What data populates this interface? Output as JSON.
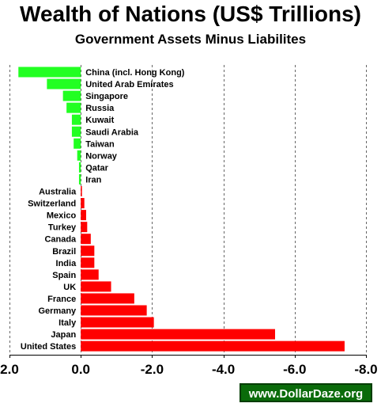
{
  "title": "Wealth of Nations (US$ Trillions)",
  "subtitle": "Government Assets Minus Liabilites",
  "watermark": "www.DollarDaze.org",
  "colors": {
    "positive": "#22ff22",
    "negative": "#ff0000",
    "grid": "#666666"
  },
  "chart_data": {
    "type": "bar",
    "orientation": "horizontal",
    "axis": "reversed",
    "xlim": [
      2.0,
      -8.0
    ],
    "ticks": [
      2.0,
      0.0,
      -2.0,
      -4.0,
      -6.0,
      -8.0
    ],
    "tick_labels": [
      "2.0",
      "0.0",
      "-2.0",
      "-4.0",
      "-6.0",
      "-8.0"
    ],
    "grid": true,
    "categories": [
      "China (incl. Hong Kong)",
      "United Arab Emirates",
      "Singapore",
      "Russia",
      "Kuwait",
      "Saudi Arabia",
      "Taiwan",
      "Norway",
      "Qatar",
      "Iran",
      "Australia",
      "Switzerland",
      "Mexico",
      "Turkey",
      "Canada",
      "Brazil",
      "India",
      "Spain",
      "UK",
      "France",
      "Germany",
      "Italy",
      "Japan",
      "United States"
    ],
    "values": [
      1.75,
      0.95,
      0.5,
      0.4,
      0.25,
      0.25,
      0.2,
      0.1,
      0.05,
      0.05,
      -0.02,
      -0.1,
      -0.15,
      -0.18,
      -0.28,
      -0.38,
      -0.38,
      -0.5,
      -0.85,
      -1.5,
      -1.85,
      -2.05,
      -5.45,
      -7.4
    ]
  }
}
